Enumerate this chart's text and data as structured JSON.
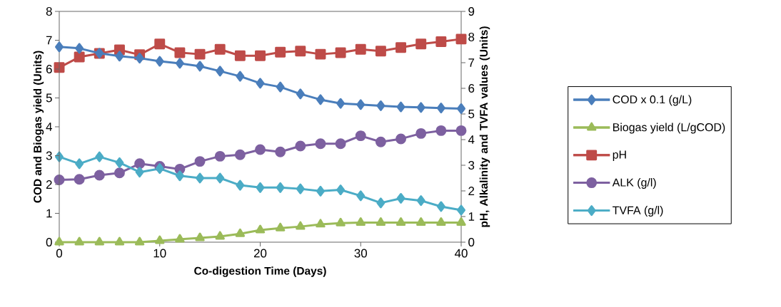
{
  "chart_data": {
    "type": "line",
    "xlabel": "Co-digestion Time (Days)",
    "ylabel": "COD and Biogas yield (Units)",
    "y2label": "pH, Alkalinity and TVFA values (Units)",
    "x": [
      0,
      2,
      4,
      6,
      8,
      10,
      12,
      14,
      16,
      18,
      20,
      22,
      24,
      26,
      28,
      30,
      32,
      34,
      36,
      38,
      40
    ],
    "xlim": [
      0,
      40
    ],
    "xticks": [
      0,
      10,
      20,
      30,
      40
    ],
    "ylim": [
      0,
      8
    ],
    "yticks": [
      0,
      1,
      2,
      3,
      4,
      5,
      6,
      7,
      8
    ],
    "y2lim": [
      0,
      9
    ],
    "y2ticks": [
      0,
      1,
      2,
      3,
      4,
      5,
      6,
      7,
      8,
      9
    ],
    "legend": "right",
    "grid": false,
    "series": [
      {
        "name": "COD x 0.1 (g/L)",
        "color": "#4a7ebb",
        "marker": "diamond",
        "values": [
          6.77,
          6.72,
          6.55,
          6.45,
          6.38,
          6.27,
          6.2,
          6.1,
          5.93,
          5.75,
          5.51,
          5.38,
          5.14,
          4.94,
          4.81,
          4.77,
          4.73,
          4.69,
          4.67,
          4.65,
          4.63
        ]
      },
      {
        "name": "Biogas yield (L/gCOD)",
        "color": "#9bbb59",
        "marker": "triangle",
        "values": [
          0,
          0,
          0,
          0,
          0,
          0.05,
          0.1,
          0.15,
          0.2,
          0.29,
          0.42,
          0.49,
          0.54,
          0.62,
          0.66,
          0.68,
          0.68,
          0.68,
          0.68,
          0.68,
          0.68
        ]
      },
      {
        "name": "pH",
        "color": "#be4b48",
        "marker": "square",
        "axis": "y2",
        "values": [
          6.81,
          7.22,
          7.36,
          7.5,
          7.31,
          7.73,
          7.39,
          7.33,
          7.52,
          7.27,
          7.27,
          7.41,
          7.45,
          7.33,
          7.39,
          7.52,
          7.45,
          7.59,
          7.73,
          7.82,
          7.92
        ]
      },
      {
        "name": "ALK (g/l)",
        "color": "#7d60a0",
        "marker": "circle",
        "axis": "y2",
        "values": [
          2.43,
          2.45,
          2.61,
          2.7,
          3.06,
          2.96,
          2.85,
          3.15,
          3.35,
          3.41,
          3.61,
          3.52,
          3.75,
          3.84,
          3.84,
          4.15,
          3.91,
          4.03,
          4.24,
          4.35,
          4.35
        ]
      },
      {
        "name": "TVFA (g/l)",
        "color": "#4bacc6",
        "marker": "diamond",
        "axis": "y2",
        "values": [
          3.33,
          3.06,
          3.33,
          3.1,
          2.73,
          2.87,
          2.59,
          2.5,
          2.5,
          2.22,
          2.13,
          2.13,
          2.08,
          1.99,
          2.04,
          1.81,
          1.53,
          1.71,
          1.62,
          1.39,
          1.25
        ]
      }
    ]
  }
}
